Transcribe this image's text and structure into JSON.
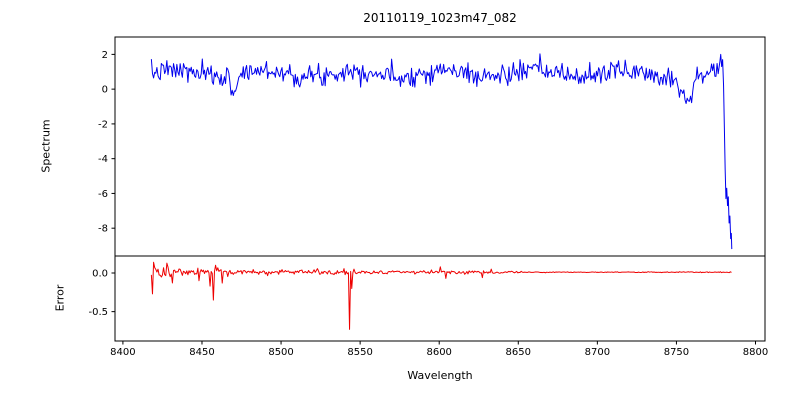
{
  "chart_data": {
    "type": "line",
    "title": "20110119_1023m47_082",
    "xlabel": "Wavelength",
    "x_axis": {
      "lim": [
        8395,
        8806
      ],
      "ticks": [
        8400,
        8450,
        8500,
        8550,
        8600,
        8650,
        8700,
        8750,
        8800
      ]
    },
    "panels": [
      {
        "name": "spectrum",
        "ylabel": "Spectrum",
        "color": "#0000ee",
        "ylim": [
          -9.6,
          3.0
        ],
        "yticks": [
          {
            "v": 2,
            "label": "2"
          },
          {
            "v": 0,
            "label": "0"
          },
          {
            "v": -2,
            "label": "-2"
          },
          {
            "v": -4,
            "label": "-4"
          },
          {
            "v": -6,
            "label": "-6"
          },
          {
            "v": -8,
            "label": "-8"
          }
        ],
        "gen": {
          "x_start": 8418,
          "x_end": 8777,
          "step": 0.7,
          "seed": 7,
          "baseline": 0.9,
          "slow_amp": 0.18,
          "slow_period": 57,
          "noise_sigma": 0.3,
          "dips": [
            {
              "x": 8470,
              "depth": 0.9,
              "width": 2.0
            },
            {
              "x": 8757,
              "depth": 1.35,
              "width": 4.0
            }
          ],
          "tail": [
            [
              8777.5,
              1.6
            ],
            [
              8778,
              2.0
            ],
            [
              8778.6,
              1.3
            ],
            [
              8779.2,
              1.7
            ],
            [
              8779.8,
              0.2
            ],
            [
              8780.3,
              -2.2
            ],
            [
              8780.8,
              -4.6
            ],
            [
              8781.3,
              -6.3
            ],
            [
              8781.8,
              -5.7
            ],
            [
              8782.3,
              -6.7
            ],
            [
              8782.8,
              -6.2
            ],
            [
              8783.3,
              -7.7
            ],
            [
              8783.8,
              -7.3
            ],
            [
              8784.3,
              -8.6
            ],
            [
              8784.7,
              -8.3
            ],
            [
              8785,
              -9.2
            ]
          ]
        }
      },
      {
        "name": "error",
        "ylabel": "Error",
        "color": "#ee0000",
        "ylim": [
          -0.88,
          0.22
        ],
        "yticks": [
          {
            "v": 0,
            "label": "0.0"
          },
          {
            "v": -0.5,
            "label": "-0.5"
          }
        ],
        "gen": {
          "x_start": 8418,
          "x_end": 8785,
          "step": 0.7,
          "seed": 13,
          "baseline": 0.01,
          "sigma_regions": [
            [
              8418,
              8432,
              0.05
            ],
            [
              8432,
              8480,
              0.028
            ],
            [
              8480,
              8548,
              0.018
            ],
            [
              8548,
              8652,
              0.011
            ],
            [
              8652,
              8785,
              0.003
            ]
          ],
          "spikes": [
            [
              8419,
              -0.27
            ],
            [
              8420.4,
              0.07
            ],
            [
              8448,
              -0.1
            ],
            [
              8455,
              -0.17
            ],
            [
              8457,
              -0.35
            ],
            [
              8458.4,
              0.1
            ],
            [
              8463,
              -0.13
            ],
            [
              8543,
              -0.73
            ],
            [
              8544.4,
              -0.2
            ],
            [
              8601,
              0.08
            ],
            [
              8604,
              -0.07
            ],
            [
              8627,
              -0.06
            ],
            [
              8633,
              0.05
            ]
          ]
        }
      }
    ]
  }
}
